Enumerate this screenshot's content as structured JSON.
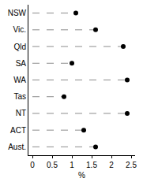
{
  "chart_data": {
    "type": "scatter",
    "orientation": "horizontal",
    "categories": [
      "NSW",
      "Vic.",
      "Qld",
      "SA",
      "WA",
      "Tas",
      "NT",
      "ACT",
      "Aust."
    ],
    "values": [
      1.1,
      1.6,
      2.3,
      1.0,
      2.4,
      0.8,
      2.4,
      1.3,
      1.6
    ],
    "color": "#000000",
    "marker": "circle",
    "line_style": "dash",
    "xlabel": "%",
    "xlim": [
      -0.1,
      2.6
    ],
    "xticks": [
      0,
      0.5,
      1,
      1.5,
      2,
      2.5
    ],
    "grid": false
  }
}
